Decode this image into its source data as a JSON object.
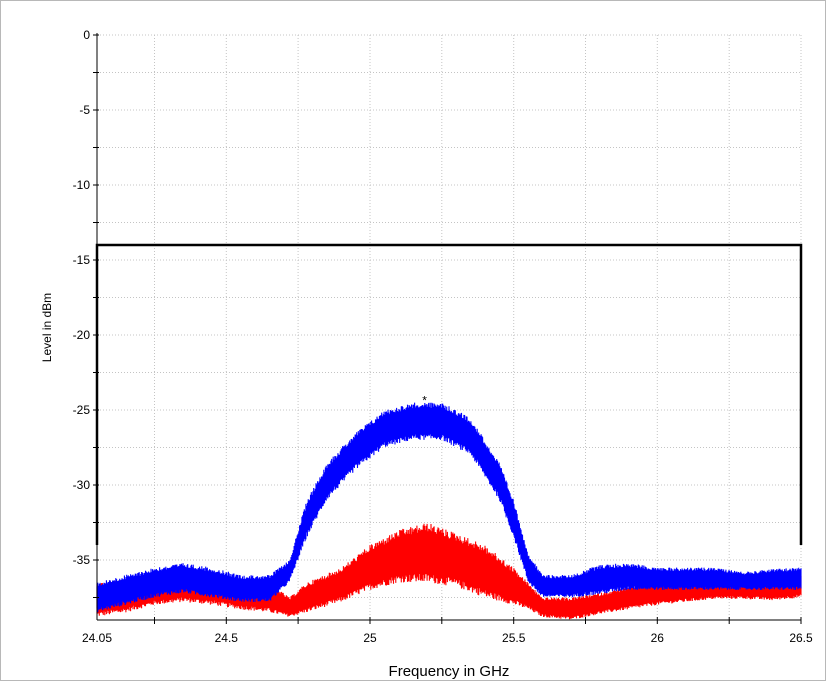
{
  "chart_data": {
    "type": "line",
    "title": "",
    "xlabel": "Frequency in GHz",
    "ylabel": "Level in dBm",
    "xlim": [
      24.05,
      26.5
    ],
    "ylim": [
      -39,
      0
    ],
    "x_ticks": [
      24.05,
      24.5,
      25,
      25.5,
      26,
      26.5
    ],
    "x_tick_labels": [
      "24.05",
      "24.5",
      "25",
      "25.5",
      "26",
      "26.5"
    ],
    "y_ticks": [
      0,
      -5,
      -10,
      -15,
      -20,
      -25,
      -30,
      -35
    ],
    "y_tick_labels": [
      "0",
      "-5",
      "-10",
      "-15",
      "-20",
      "-25",
      "-30",
      "-35"
    ],
    "grid": true,
    "limit_line": {
      "color": "#000000",
      "points": [
        [
          24.05,
          -34
        ],
        [
          24.05,
          -14
        ],
        [
          26.5,
          -14
        ],
        [
          26.5,
          -34
        ]
      ]
    },
    "marker": {
      "x": 25.19,
      "y": -24.1,
      "symbol": "*",
      "color": "#8b0000"
    },
    "series": [
      {
        "color": "#ff0000",
        "x": [
          24.05,
          24.15,
          24.25,
          24.35,
          24.45,
          24.55,
          24.65,
          24.72,
          24.78,
          24.9,
          25.0,
          25.1,
          25.2,
          25.3,
          25.4,
          25.5,
          25.55,
          25.6,
          25.7,
          25.8,
          25.9,
          26.0,
          26.1,
          26.2,
          26.3,
          26.4,
          26.5
        ],
        "y_upper": [
          -36.5,
          -36.3,
          -36.0,
          -35.6,
          -35.8,
          -36.3,
          -36.5,
          -37.5,
          -36.5,
          -35.5,
          -34.0,
          -33.0,
          -32.5,
          -33.2,
          -34.0,
          -35.5,
          -36.5,
          -37.5,
          -37.5,
          -37.2,
          -36.8,
          -36.5,
          -36.3,
          -36.3,
          -36.2,
          -36.3,
          -36.0
        ],
        "y_lower": [
          -38.8,
          -38.5,
          -38.0,
          -37.8,
          -38.0,
          -38.3,
          -38.5,
          -38.8,
          -38.5,
          -37.8,
          -37.0,
          -36.5,
          -36.5,
          -36.8,
          -37.5,
          -38.0,
          -38.3,
          -38.8,
          -39.0,
          -38.6,
          -38.3,
          -38.0,
          -37.8,
          -37.6,
          -37.6,
          -37.7,
          -37.5
        ]
      },
      {
        "color": "#0000ff",
        "x": [
          24.05,
          24.15,
          24.25,
          24.35,
          24.45,
          24.55,
          24.65,
          24.72,
          24.78,
          24.85,
          24.95,
          25.05,
          25.15,
          25.25,
          25.35,
          25.45,
          25.5,
          25.55,
          25.6,
          25.7,
          25.8,
          25.9,
          26.0,
          26.1,
          26.2,
          26.3,
          26.4,
          26.5
        ],
        "y_upper": [
          -36.5,
          -36.0,
          -35.5,
          -35.2,
          -35.5,
          -36.0,
          -36.0,
          -35.0,
          -31.0,
          -28.5,
          -26.5,
          -25.0,
          -24.5,
          -24.5,
          -25.5,
          -28.5,
          -31.0,
          -34.5,
          -36.0,
          -36.0,
          -35.3,
          -35.2,
          -35.5,
          -35.5,
          -35.5,
          -35.8,
          -35.6,
          -35.5
        ],
        "y_lower": [
          -38.5,
          -38.0,
          -37.5,
          -37.2,
          -37.5,
          -37.8,
          -37.8,
          -36.5,
          -33.5,
          -31.0,
          -29.0,
          -27.5,
          -27.0,
          -27.0,
          -28.0,
          -31.0,
          -33.5,
          -36.5,
          -37.5,
          -37.5,
          -37.3,
          -37.0,
          -37.0,
          -37.0,
          -37.0,
          -37.0,
          -37.0,
          -37.0
        ]
      }
    ]
  }
}
